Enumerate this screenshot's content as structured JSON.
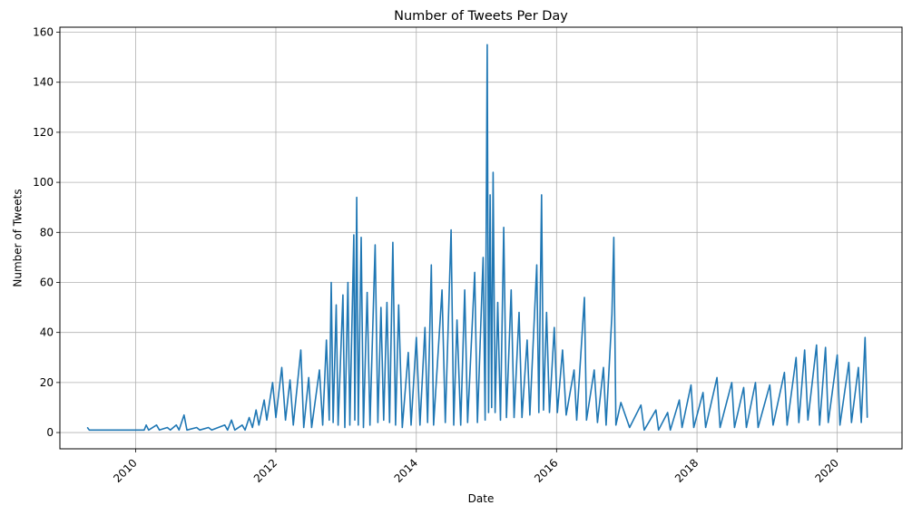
{
  "chart_data": {
    "type": "line",
    "title": "Number of Tweets Per Day",
    "xlabel": "Date",
    "ylabel": "Number of Tweets",
    "grid": true,
    "line_color": "#1f77b4",
    "x_ticks": [
      "2010",
      "2012",
      "2014",
      "2016",
      "2018",
      "2020"
    ],
    "y_ticks": [
      "0",
      "20",
      "40",
      "60",
      "80",
      "100",
      "120",
      "140",
      "160"
    ],
    "xlim": [
      "2008-12-03",
      "2020-12-03"
    ],
    "ylim": [
      -6.5,
      162
    ],
    "series": [
      {
        "points": [
          [
            "2009-04-25",
            2
          ],
          [
            "2009-05-05",
            1
          ],
          [
            "2009-10-01",
            1
          ],
          [
            "2010-02-15",
            1
          ],
          [
            "2010-02-25",
            3
          ],
          [
            "2010-03-10",
            1
          ],
          [
            "2010-04-20",
            3
          ],
          [
            "2010-05-05",
            1
          ],
          [
            "2010-06-15",
            2
          ],
          [
            "2010-07-01",
            1
          ],
          [
            "2010-08-01",
            3
          ],
          [
            "2010-08-15",
            1
          ],
          [
            "2010-09-10",
            7
          ],
          [
            "2010-09-25",
            1
          ],
          [
            "2010-11-15",
            2
          ],
          [
            "2010-12-01",
            1
          ],
          [
            "2011-01-15",
            2
          ],
          [
            "2011-02-01",
            1
          ],
          [
            "2011-04-10",
            3
          ],
          [
            "2011-04-25",
            1
          ],
          [
            "2011-05-15",
            5
          ],
          [
            "2011-06-01",
            1
          ],
          [
            "2011-07-10",
            3
          ],
          [
            "2011-07-25",
            1
          ],
          [
            "2011-08-15",
            6
          ],
          [
            "2011-09-01",
            2
          ],
          [
            "2011-09-20",
            9
          ],
          [
            "2011-10-05",
            3
          ],
          [
            "2011-11-01",
            13
          ],
          [
            "2011-11-15",
            5
          ],
          [
            "2011-12-15",
            20
          ],
          [
            "2012-01-01",
            6
          ],
          [
            "2012-02-01",
            26
          ],
          [
            "2012-02-20",
            5
          ],
          [
            "2012-03-15",
            21
          ],
          [
            "2012-04-01",
            3
          ],
          [
            "2012-05-10",
            33
          ],
          [
            "2012-05-25",
            2
          ],
          [
            "2012-06-20",
            22
          ],
          [
            "2012-07-05",
            2
          ],
          [
            "2012-08-15",
            25
          ],
          [
            "2012-09-01",
            3
          ],
          [
            "2012-09-20",
            37
          ],
          [
            "2012-10-05",
            5
          ],
          [
            "2012-10-15",
            60
          ],
          [
            "2012-10-25",
            4
          ],
          [
            "2012-11-10",
            51
          ],
          [
            "2012-11-20",
            3
          ],
          [
            "2012-12-15",
            55
          ],
          [
            "2012-12-25",
            2
          ],
          [
            "2013-01-10",
            60
          ],
          [
            "2013-01-20",
            3
          ],
          [
            "2013-02-10",
            79
          ],
          [
            "2013-02-15",
            5
          ],
          [
            "2013-02-25",
            94
          ],
          [
            "2013-03-05",
            3
          ],
          [
            "2013-03-20",
            78
          ],
          [
            "2013-04-01",
            2
          ],
          [
            "2013-04-20",
            56
          ],
          [
            "2013-05-05",
            3
          ],
          [
            "2013-06-01",
            75
          ],
          [
            "2013-06-15",
            4
          ],
          [
            "2013-07-01",
            50
          ],
          [
            "2013-07-15",
            5
          ],
          [
            "2013-08-01",
            52
          ],
          [
            "2013-08-15",
            4
          ],
          [
            "2013-09-01",
            76
          ],
          [
            "2013-09-15",
            3
          ],
          [
            "2013-10-01",
            51
          ],
          [
            "2013-10-20",
            2
          ],
          [
            "2013-11-20",
            32
          ],
          [
            "2013-12-05",
            3
          ],
          [
            "2014-01-01",
            38
          ],
          [
            "2014-01-20",
            3
          ],
          [
            "2014-02-15",
            42
          ],
          [
            "2014-03-01",
            4
          ],
          [
            "2014-03-20",
            67
          ],
          [
            "2014-04-01",
            3
          ],
          [
            "2014-05-15",
            57
          ],
          [
            "2014-06-01",
            4
          ],
          [
            "2014-07-01",
            81
          ],
          [
            "2014-07-15",
            3
          ],
          [
            "2014-08-01",
            45
          ],
          [
            "2014-08-20",
            3
          ],
          [
            "2014-09-10",
            57
          ],
          [
            "2014-09-25",
            4
          ],
          [
            "2014-11-01",
            64
          ],
          [
            "2014-11-15",
            4
          ],
          [
            "2014-12-15",
            70
          ],
          [
            "2014-12-25",
            5
          ],
          [
            "2015-01-05",
            155
          ],
          [
            "2015-01-12",
            8
          ],
          [
            "2015-01-20",
            95
          ],
          [
            "2015-01-28",
            10
          ],
          [
            "2015-02-05",
            104
          ],
          [
            "2015-02-15",
            8
          ],
          [
            "2015-03-01",
            52
          ],
          [
            "2015-03-15",
            5
          ],
          [
            "2015-04-01",
            82
          ],
          [
            "2015-04-15",
            6
          ],
          [
            "2015-05-10",
            57
          ],
          [
            "2015-05-25",
            6
          ],
          [
            "2015-06-20",
            48
          ],
          [
            "2015-07-05",
            6
          ],
          [
            "2015-08-01",
            37
          ],
          [
            "2015-08-15",
            7
          ],
          [
            "2015-09-20",
            67
          ],
          [
            "2015-10-01",
            8
          ],
          [
            "2015-10-15",
            95
          ],
          [
            "2015-10-25",
            9
          ],
          [
            "2015-11-10",
            48
          ],
          [
            "2015-11-25",
            8
          ],
          [
            "2015-12-20",
            42
          ],
          [
            "2016-01-05",
            8
          ],
          [
            "2016-02-01",
            33
          ],
          [
            "2016-02-20",
            7
          ],
          [
            "2016-04-01",
            25
          ],
          [
            "2016-04-15",
            5
          ],
          [
            "2016-05-25",
            54
          ],
          [
            "2016-06-05",
            5
          ],
          [
            "2016-07-15",
            25
          ],
          [
            "2016-08-01",
            4
          ],
          [
            "2016-09-01",
            26
          ],
          [
            "2016-09-15",
            3
          ],
          [
            "2016-10-15",
            47
          ],
          [
            "2016-10-25",
            78
          ],
          [
            "2016-11-05",
            3
          ],
          [
            "2016-12-01",
            12
          ],
          [
            "2017-01-15",
            2
          ],
          [
            "2017-03-15",
            11
          ],
          [
            "2017-04-01",
            1
          ],
          [
            "2017-06-01",
            9
          ],
          [
            "2017-06-15",
            1
          ],
          [
            "2017-08-01",
            8
          ],
          [
            "2017-08-15",
            1
          ],
          [
            "2017-10-01",
            13
          ],
          [
            "2017-10-15",
            2
          ],
          [
            "2017-12-01",
            19
          ],
          [
            "2017-12-15",
            2
          ],
          [
            "2018-02-01",
            16
          ],
          [
            "2018-02-15",
            2
          ],
          [
            "2018-04-15",
            22
          ],
          [
            "2018-05-01",
            2
          ],
          [
            "2018-07-01",
            20
          ],
          [
            "2018-07-15",
            2
          ],
          [
            "2018-09-01",
            18
          ],
          [
            "2018-09-15",
            2
          ],
          [
            "2018-11-01",
            20
          ],
          [
            "2018-11-15",
            2
          ],
          [
            "2019-01-15",
            19
          ],
          [
            "2019-02-01",
            3
          ],
          [
            "2019-04-01",
            24
          ],
          [
            "2019-04-15",
            3
          ],
          [
            "2019-06-01",
            30
          ],
          [
            "2019-06-15",
            4
          ],
          [
            "2019-07-15",
            33
          ],
          [
            "2019-08-01",
            5
          ],
          [
            "2019-09-15",
            35
          ],
          [
            "2019-10-01",
            3
          ],
          [
            "2019-11-01",
            34
          ],
          [
            "2019-11-15",
            4
          ],
          [
            "2020-01-01",
            31
          ],
          [
            "2020-01-15",
            3
          ],
          [
            "2020-03-01",
            28
          ],
          [
            "2020-03-15",
            4
          ],
          [
            "2020-04-20",
            26
          ],
          [
            "2020-05-05",
            4
          ],
          [
            "2020-05-25",
            38
          ],
          [
            "2020-06-05",
            6
          ]
        ]
      }
    ]
  }
}
